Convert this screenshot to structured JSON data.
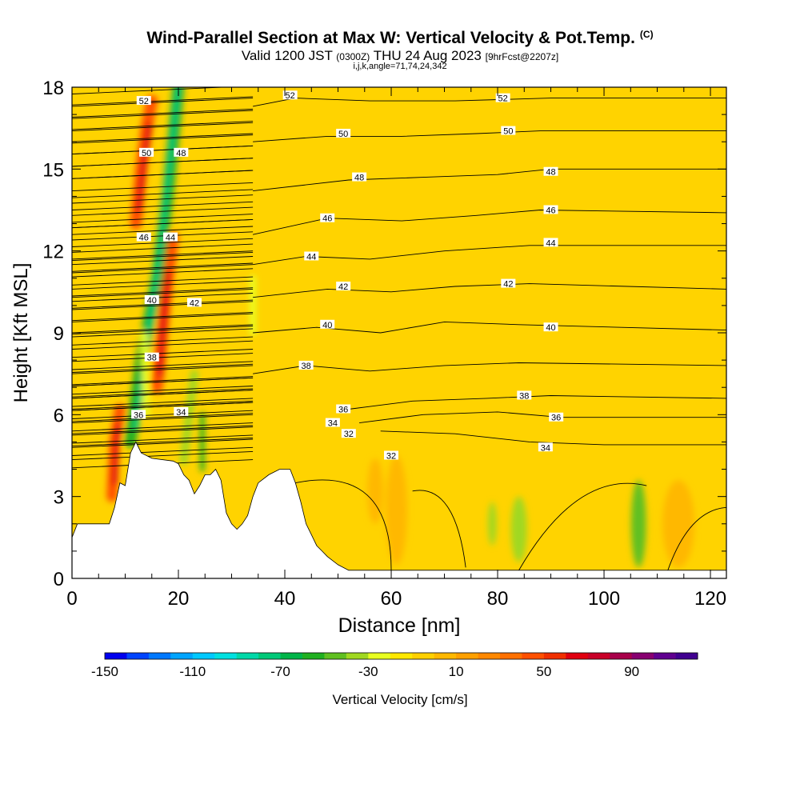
{
  "header": {
    "title": "Wind-Parallel Section at Max W: Vertical Velocity & Pot.Temp.",
    "copyright": "(C)",
    "valid_main": "Valid 1200 JST",
    "valid_utc": "(0300Z)",
    "valid_date": "THU 24 Aug 2023",
    "forecast": "[9hrFcst@2207z]",
    "indices": "i,j,k,angle=71,74,24,342"
  },
  "chart_data": {
    "type": "heatmap",
    "title": "Wind-Parallel Section at Max W: Vertical Velocity & Pot.Temp.",
    "xlabel": "Distance [nm]",
    "ylabel": "Height [Kft MSL]",
    "xlim": [
      0,
      123
    ],
    "ylim": [
      0,
      18
    ],
    "x_ticks": [
      0,
      20,
      40,
      60,
      80,
      100,
      120
    ],
    "y_ticks": [
      0,
      3,
      6,
      9,
      12,
      15,
      18
    ],
    "grid": false,
    "colorbar": {
      "label": "Vertical Velocity [cm/s]",
      "tick_labels": [
        "-150",
        "-110",
        "-70",
        "-30",
        "10",
        "50",
        "90"
      ],
      "min": -150,
      "max": 120,
      "step": 10,
      "colors": [
        "#0000ee",
        "#0044ff",
        "#0078ff",
        "#00a4ff",
        "#00c8ff",
        "#00e0e0",
        "#00d8a8",
        "#00c878",
        "#00b448",
        "#20b020",
        "#60c020",
        "#a0d820",
        "#e8ff20",
        "#ffe800",
        "#ffd000",
        "#ffb800",
        "#ffa000",
        "#ff8800",
        "#ff7000",
        "#ff5000",
        "#f03000",
        "#e00010",
        "#c80028",
        "#a8004a",
        "#880070",
        "#600090",
        "#400090"
      ]
    },
    "terrain": [
      [
        0,
        1.5
      ],
      [
        1,
        2
      ],
      [
        4,
        2
      ],
      [
        7,
        2
      ],
      [
        8,
        2.6
      ],
      [
        9,
        3.5
      ],
      [
        10,
        3.4
      ],
      [
        11,
        4.6
      ],
      [
        12,
        5
      ],
      [
        13,
        4.6
      ],
      [
        15,
        4.4
      ],
      [
        19,
        4.3
      ],
      [
        20,
        4.2
      ],
      [
        21,
        3.8
      ],
      [
        22,
        3.6
      ],
      [
        23,
        3.1
      ],
      [
        24,
        3.4
      ],
      [
        25,
        3.8
      ],
      [
        26,
        3.8
      ],
      [
        27,
        4
      ],
      [
        28,
        3.6
      ],
      [
        29,
        2.4
      ],
      [
        30,
        2
      ],
      [
        31,
        1.8
      ],
      [
        32,
        2
      ],
      [
        33,
        2.3
      ],
      [
        34,
        3
      ],
      [
        35,
        3.5
      ],
      [
        37,
        3.8
      ],
      [
        39,
        4
      ],
      [
        41,
        4
      ],
      [
        42,
        3.5
      ],
      [
        43,
        2.8
      ],
      [
        44,
        2
      ],
      [
        45,
        1.6
      ],
      [
        46,
        1.2
      ],
      [
        47,
        1
      ],
      [
        48,
        0.8
      ],
      [
        50,
        0.5
      ],
      [
        52,
        0.3
      ],
      [
        55,
        0.3
      ],
      [
        123,
        0.3
      ]
    ],
    "series": [
      {
        "name": "32",
        "x": [
          58,
          72,
          86,
          100,
          123
        ],
        "y": [
          5.4,
          5.3,
          5.0,
          4.9,
          4.9
        ]
      },
      {
        "name": "34",
        "x": [
          54,
          66,
          80,
          92,
          123
        ],
        "y": [
          5.7,
          6.0,
          6.1,
          5.9,
          5.9
        ]
      },
      {
        "name": "36",
        "x": [
          52,
          64,
          78,
          90,
          123
        ],
        "y": [
          6.2,
          6.5,
          6.6,
          6.7,
          6.6
        ]
      },
      {
        "name": "38",
        "x": [
          34,
          44,
          56,
          70,
          84,
          123
        ],
        "y": [
          7.5,
          7.8,
          7.6,
          7.8,
          7.9,
          7.8
        ]
      },
      {
        "name": "40",
        "x": [
          34,
          46,
          58,
          70,
          84,
          123
        ],
        "y": [
          9.0,
          9.2,
          9.0,
          9.4,
          9.3,
          9.1
        ]
      },
      {
        "name": "42",
        "x": [
          34,
          48,
          60,
          72,
          86,
          123
        ],
        "y": [
          10.3,
          10.6,
          10.5,
          10.7,
          10.8,
          10.6
        ]
      },
      {
        "name": "44",
        "x": [
          34,
          44,
          56,
          70,
          86,
          123
        ],
        "y": [
          11.5,
          11.8,
          11.7,
          12.0,
          12.2,
          12.2
        ]
      },
      {
        "name": "46",
        "x": [
          34,
          48,
          62,
          76,
          88,
          123
        ],
        "y": [
          12.6,
          13.2,
          13.1,
          13.3,
          13.5,
          13.4
        ]
      },
      {
        "name": "48",
        "x": [
          34,
          52,
          66,
          80,
          90,
          123
        ],
        "y": [
          14.2,
          14.6,
          14.7,
          14.8,
          15.0,
          15.0
        ]
      },
      {
        "name": "50",
        "x": [
          34,
          48,
          62,
          76,
          88,
          123
        ],
        "y": [
          16.0,
          16.2,
          16.2,
          16.3,
          16.4,
          16.4
        ]
      },
      {
        "name": "52",
        "x": [
          34,
          42,
          56,
          72,
          90,
          123
        ],
        "y": [
          17.3,
          17.6,
          17.5,
          17.5,
          17.6,
          17.6
        ]
      }
    ],
    "annotations": [
      "52",
      "52",
      "52",
      "50",
      "50",
      "50",
      "48",
      "48",
      "48",
      "46",
      "46",
      "46",
      "44",
      "44",
      "44",
      "42",
      "42",
      "42",
      "40",
      "40",
      "40",
      "38",
      "38",
      "38",
      "36",
      "36",
      "36",
      "34",
      "34",
      "34",
      "32",
      "32"
    ]
  }
}
